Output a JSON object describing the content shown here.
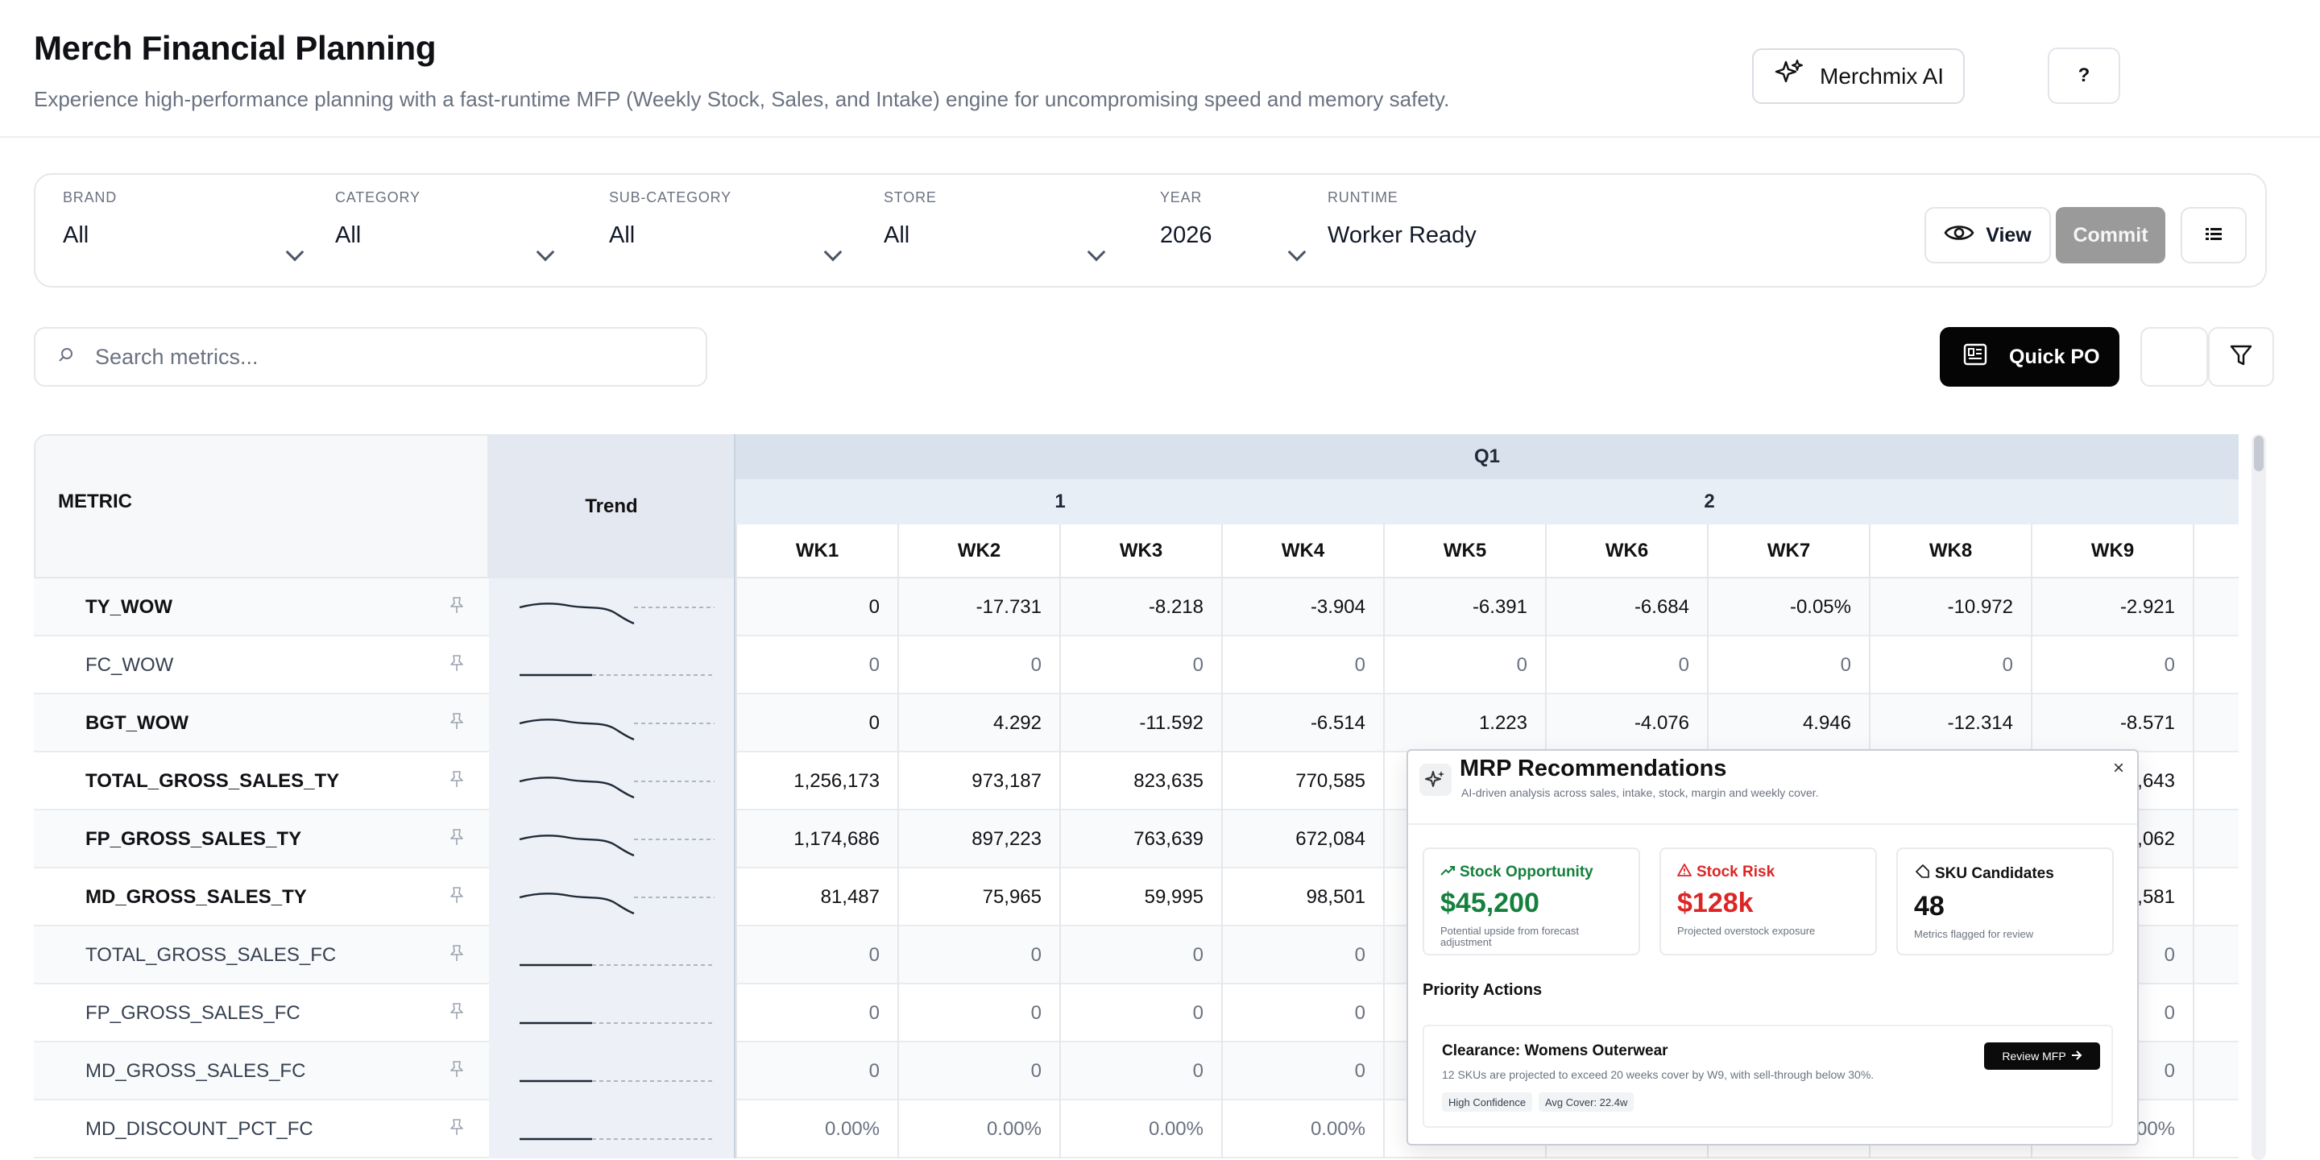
{
  "header": {
    "title": "Merch Financial Planning",
    "subtitle": "Experience high-performance planning with a fast-runtime MFP (Weekly Stock, Sales, and Intake) engine for uncompromising speed and memory safety.",
    "ai_button": "Merchmix AI",
    "help_button": "?"
  },
  "filters": {
    "brand": {
      "label": "BRAND",
      "value": "All"
    },
    "category": {
      "label": "CATEGORY",
      "value": "All"
    },
    "subcategory": {
      "label": "SUB-CATEGORY",
      "value": "All"
    },
    "store": {
      "label": "STORE",
      "value": "All"
    },
    "year": {
      "label": "YEAR",
      "value": "2026"
    },
    "runtime": {
      "label": "RUNTIME",
      "value": "Worker Ready"
    },
    "view_button": "View",
    "commit_button": "Commit"
  },
  "search": {
    "placeholder": "Search metrics..."
  },
  "toolbar": {
    "quick_po": "Quick PO"
  },
  "grid": {
    "metric_header": "METRIC",
    "trend_header": "Trend",
    "quarter": "Q1",
    "months": [
      "1",
      "2"
    ],
    "weeks": [
      "WK1",
      "WK2",
      "WK3",
      "WK4",
      "WK5",
      "WK6",
      "WK7",
      "WK8",
      "WK9"
    ],
    "rows": [
      {
        "name": "TY_WOW",
        "cells": [
          "0",
          "-17.731",
          "-8.218",
          "-3.904",
          "-6.391",
          "-6.684",
          "-0.05%",
          "-10.972",
          "-2.921"
        ]
      },
      {
        "name": "FC_WOW",
        "cells": [
          "0",
          "0",
          "0",
          "0",
          "0",
          "0",
          "0",
          "0",
          "0"
        ]
      },
      {
        "name": "BGT_WOW",
        "cells": [
          "0",
          "4.292",
          "-11.592",
          "-6.514",
          "1.223",
          "-4.076",
          "4.946",
          "-12.314",
          "-8.571"
        ]
      },
      {
        "name": "TOTAL_GROSS_SALES_TY",
        "cells": [
          "1,256,173",
          "973,187",
          "823,635",
          "770,585",
          "",
          "",
          "",
          "",
          ",643"
        ]
      },
      {
        "name": "FP_GROSS_SALES_TY",
        "cells": [
          "1,174,686",
          "897,223",
          "763,639",
          "672,084",
          "",
          "",
          "",
          "",
          ",062"
        ]
      },
      {
        "name": "MD_GROSS_SALES_TY",
        "cells": [
          "81,487",
          "75,965",
          "59,995",
          "98,501",
          "",
          "",
          "",
          "",
          ",581"
        ]
      },
      {
        "name": "TOTAL_GROSS_SALES_FC",
        "cells": [
          "0",
          "0",
          "0",
          "0",
          "",
          "",
          "",
          "",
          "0"
        ]
      },
      {
        "name": "FP_GROSS_SALES_FC",
        "cells": [
          "0",
          "0",
          "0",
          "0",
          "",
          "",
          "",
          "",
          "0"
        ]
      },
      {
        "name": "MD_GROSS_SALES_FC",
        "cells": [
          "0",
          "0",
          "0",
          "0",
          "",
          "",
          "",
          "",
          "0"
        ]
      },
      {
        "name": "MD_DISCOUNT_PCT_FC",
        "cells": [
          "0.00%",
          "0.00%",
          "0.00%",
          "0.00%",
          "",
          "",
          "",
          "",
          ".00%"
        ]
      }
    ]
  },
  "mrp": {
    "title": "MRP Recommendations",
    "subtitle": "AI-driven analysis across sales, intake, stock, margin and weekly cover.",
    "close": "×",
    "kpis": [
      {
        "title": "Stock Opportunity",
        "value": "$45,200",
        "note": "Potential upside from forecast adjustment",
        "color": "#15803d"
      },
      {
        "title": "Stock Risk",
        "value": "$128k",
        "note": "Projected overstock exposure",
        "color": "#dc2626"
      },
      {
        "title": "SKU Candidates",
        "value": "48",
        "note": "Metrics flagged for review",
        "color": "#111111"
      }
    ],
    "priority_title": "Priority Actions",
    "action": {
      "name": "Clearance: Womens Outerwear",
      "description": "12 SKUs are projected to exceed 20 weeks cover by W9, with sell-through below 30%.",
      "tags": [
        "High Confidence",
        "Avg Cover: 22.4w"
      ],
      "button": "Review MFP"
    }
  }
}
